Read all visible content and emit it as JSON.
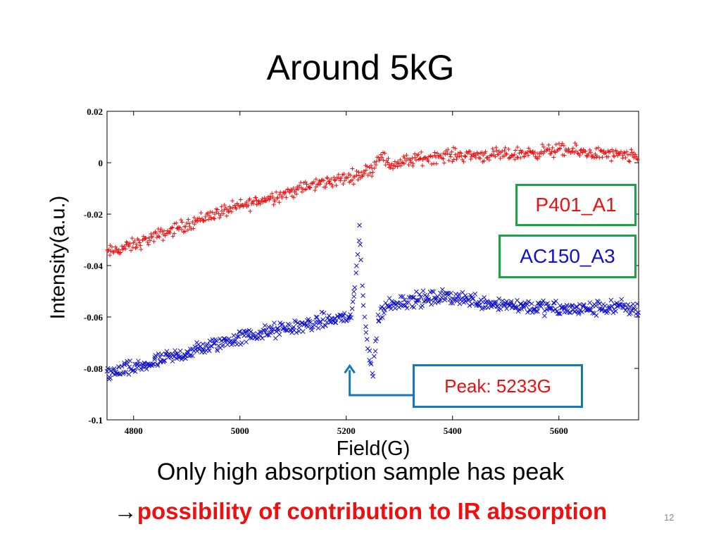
{
  "slide": {
    "title": "Around 5kG",
    "caption_line1": "Only high absorption sample has peak",
    "caption_arrow": "→",
    "caption_line2": "possibility of contribution to IR absorption",
    "page_number": "12"
  },
  "chart_data": {
    "type": "scatter",
    "xlabel": "Field(G)",
    "ylabel": "Intensity(a.u.)",
    "xlim": [
      4750,
      5750
    ],
    "ylim": [
      -0.1,
      0.02
    ],
    "xticks": [
      4800,
      5000,
      5200,
      5400,
      5600
    ],
    "yticks": [
      0.02,
      0,
      -0.02,
      -0.04,
      -0.06,
      -0.08,
      -0.1
    ],
    "xtick_labels": [
      "4800",
      "5000",
      "5200",
      "5400",
      "5600"
    ],
    "ytick_labels": [
      "0.02",
      "0",
      "-0.02",
      "-0.04",
      "-0.06",
      "-0.08",
      "-0.1"
    ],
    "grid": false,
    "series": [
      {
        "name": "P401_A1",
        "color": "#ee1010",
        "marker": "plus",
        "x": [
          4750,
          4800,
          4850,
          4900,
          4950,
          5000,
          5050,
          5100,
          5150,
          5200,
          5230,
          5250,
          5265,
          5280,
          5300,
          5350,
          5400,
          5450,
          5500,
          5550,
          5600,
          5650,
          5700,
          5750
        ],
        "y": [
          -0.035,
          -0.032,
          -0.028,
          -0.024,
          -0.02,
          -0.017,
          -0.014,
          -0.011,
          -0.008,
          -0.006,
          -0.004,
          -0.002,
          0.004,
          -0.001,
          0.0,
          0.002,
          0.003,
          0.003,
          0.003,
          0.004,
          0.005,
          0.004,
          0.003,
          0.002
        ]
      },
      {
        "name": "AC150_A3",
        "color": "#1111cc",
        "marker": "x",
        "x": [
          4750,
          4800,
          4850,
          4900,
          4950,
          5000,
          5050,
          5100,
          5150,
          5200,
          5210,
          5220,
          5225,
          5232,
          5240,
          5250,
          5260,
          5280,
          5300,
          5350,
          5400,
          5450,
          5500,
          5550,
          5600,
          5650,
          5700,
          5750
        ],
        "y": [
          -0.082,
          -0.08,
          -0.077,
          -0.074,
          -0.071,
          -0.068,
          -0.066,
          -0.064,
          -0.062,
          -0.06,
          -0.06,
          -0.04,
          -0.028,
          -0.055,
          -0.07,
          -0.083,
          -0.06,
          -0.055,
          -0.054,
          -0.053,
          -0.052,
          -0.054,
          -0.055,
          -0.056,
          -0.057,
          -0.057,
          -0.056,
          -0.057
        ]
      }
    ],
    "annotation": {
      "text": "Peak: 5233G",
      "x": 5233,
      "y": -0.079
    }
  }
}
